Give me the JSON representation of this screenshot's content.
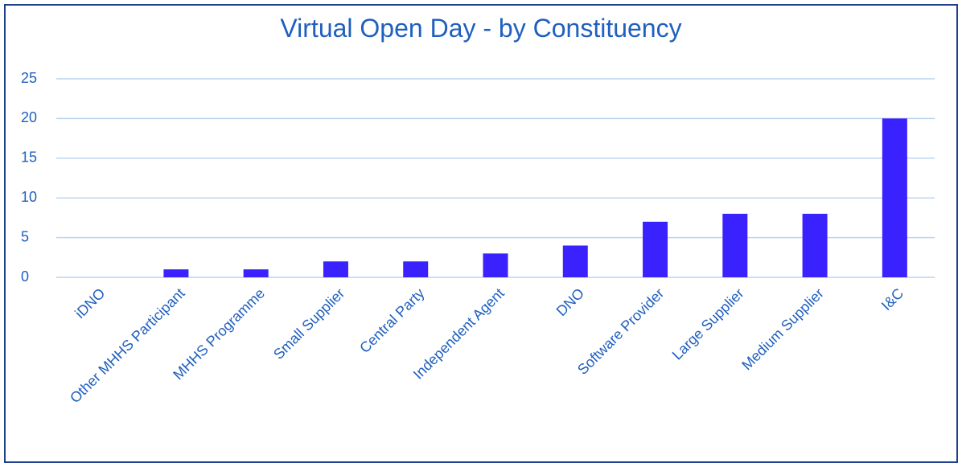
{
  "chart_data": {
    "type": "bar",
    "title": "Virtual Open Day - by Constituency",
    "categories": [
      "iDNO",
      "Other MHHS Participant",
      "MHHS Programme",
      "Small Supplier",
      "Central Party",
      "Independent Agent",
      "DNO",
      "Software Provider",
      "Large Supplier",
      "Medium Supplier",
      "I&C"
    ],
    "values": [
      0,
      1,
      1,
      2,
      2,
      3,
      4,
      7,
      8,
      8,
      20
    ],
    "color": "#3a22ff",
    "ylim": [
      0,
      25
    ],
    "yticks": [
      0,
      5,
      10,
      15,
      20,
      25
    ],
    "grid": true
  }
}
